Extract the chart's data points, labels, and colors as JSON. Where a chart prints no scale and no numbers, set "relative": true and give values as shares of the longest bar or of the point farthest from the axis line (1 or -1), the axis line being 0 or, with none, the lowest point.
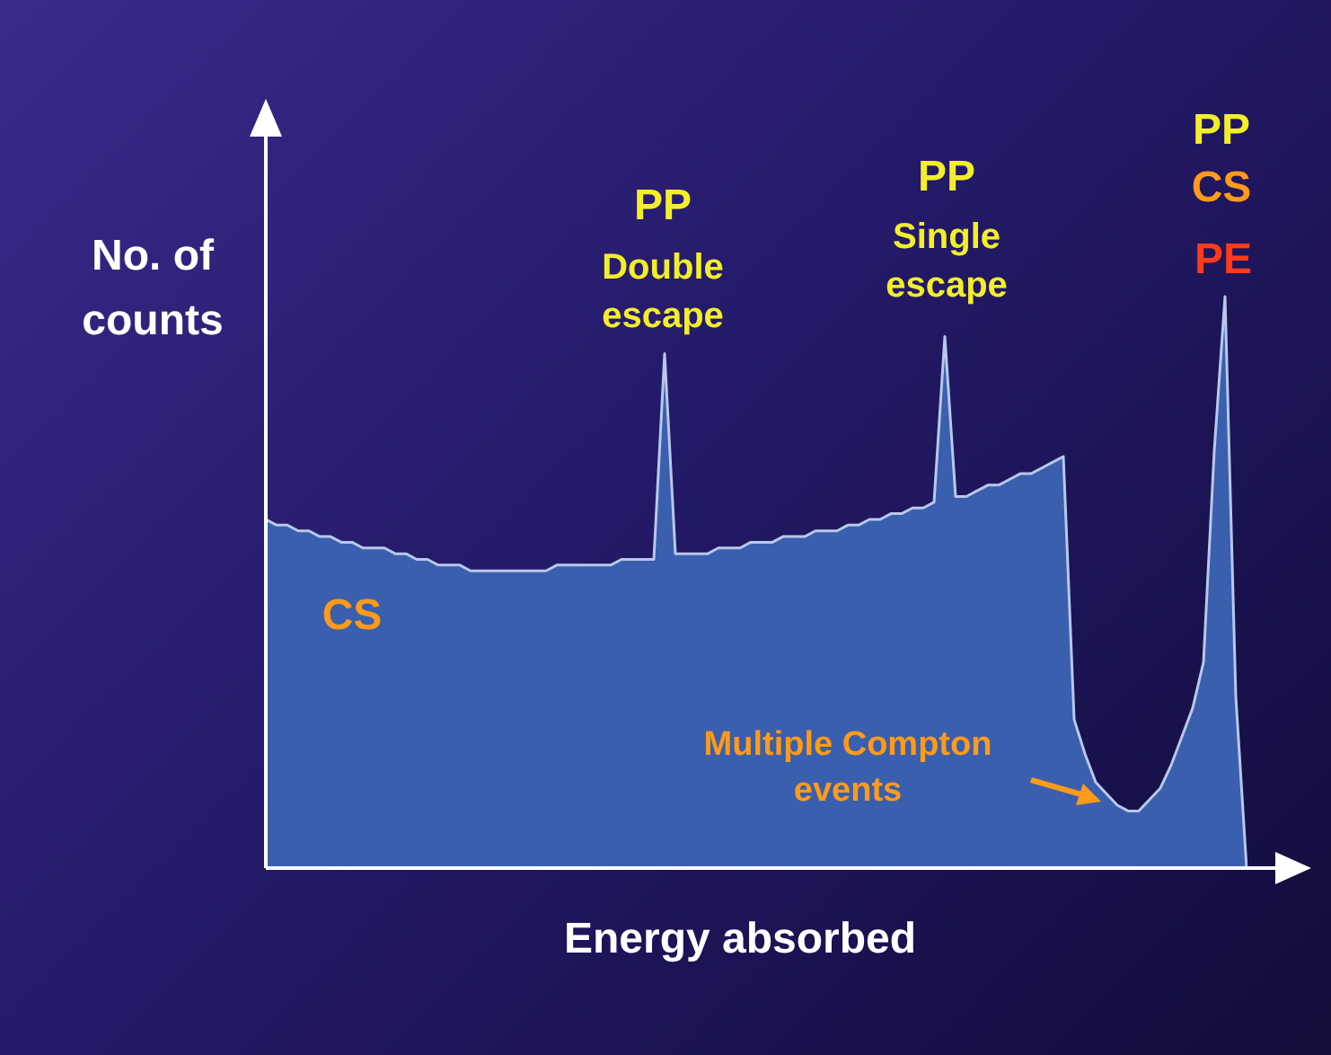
{
  "chart_data": {
    "type": "area",
    "relative": true,
    "xlabel": "Energy absorbed",
    "ylabel": "No. of counts",
    "color": "#3a5fae",
    "categories": [
      null,
      null,
      null,
      null,
      null,
      null,
      null,
      null,
      null,
      null,
      null,
      null,
      null,
      null,
      null,
      null,
      null,
      null,
      null,
      null,
      null,
      null,
      null,
      null,
      null,
      null,
      null,
      null,
      null,
      null,
      null,
      null,
      null,
      null,
      null,
      null,
      null,
      null,
      null,
      null,
      null,
      null,
      null,
      null,
      null,
      null,
      null,
      null,
      null,
      null,
      null,
      null,
      null,
      null,
      null,
      null,
      null,
      null,
      null,
      null,
      null,
      null,
      null,
      null,
      null,
      null,
      null,
      null,
      null,
      null,
      null,
      null,
      null,
      null,
      null,
      null,
      null,
      null,
      null,
      null,
      null,
      null,
      null,
      null,
      null,
      null,
      null,
      null,
      null,
      null,
      null,
      null
    ],
    "values": [
      0.61,
      0.6,
      0.6,
      0.59,
      0.59,
      0.58,
      0.58,
      0.57,
      0.57,
      0.56,
      0.56,
      0.56,
      0.55,
      0.55,
      0.54,
      0.54,
      0.53,
      0.53,
      0.53,
      0.52,
      0.52,
      0.52,
      0.52,
      0.52,
      0.52,
      0.52,
      0.52,
      0.53,
      0.53,
      0.53,
      0.53,
      0.53,
      0.53,
      0.54,
      0.54,
      0.54,
      0.54,
      0.9,
      0.55,
      0.55,
      0.55,
      0.55,
      0.56,
      0.56,
      0.56,
      0.57,
      0.57,
      0.57,
      0.58,
      0.58,
      0.58,
      0.59,
      0.59,
      0.59,
      0.6,
      0.6,
      0.61,
      0.61,
      0.62,
      0.62,
      0.63,
      0.63,
      0.64,
      0.93,
      0.65,
      0.65,
      0.66,
      0.67,
      0.67,
      0.68,
      0.69,
      0.69,
      0.7,
      0.71,
      0.72,
      0.26,
      0.2,
      0.15,
      0.13,
      0.11,
      0.1,
      0.1,
      0.12,
      0.14,
      0.18,
      0.23,
      0.28,
      0.36,
      0.73,
      1,
      0.3,
      0
    ],
    "annotations": [
      "PP",
      "Double escape",
      "PP",
      "Single escape",
      "PP",
      "CS",
      "PE",
      "CS",
      "Multiple Compton events"
    ]
  }
}
